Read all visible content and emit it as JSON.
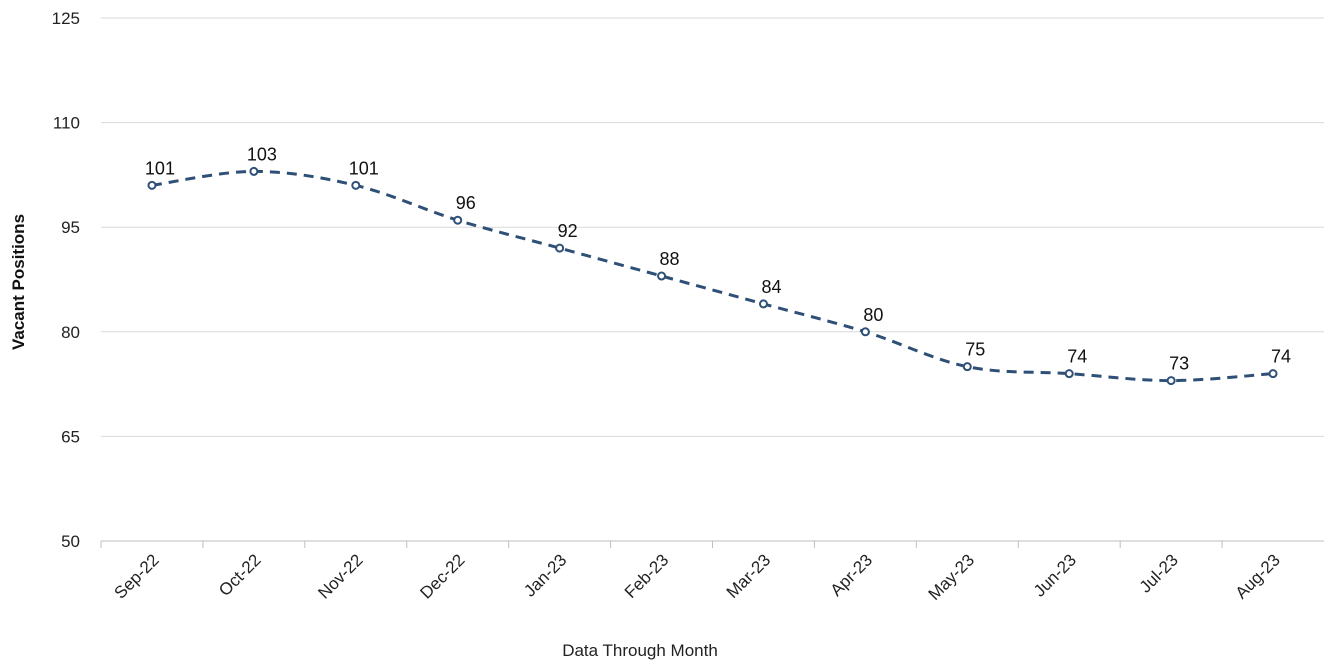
{
  "chart_data": {
    "type": "line",
    "title": "",
    "xlabel": "Data Through Month",
    "ylabel": "Vacant Positions",
    "categories": [
      "Sep-22",
      "Oct-22",
      "Nov-22",
      "Dec-22",
      "Jan-23",
      "Feb-23",
      "Mar-23",
      "Apr-23",
      "May-23",
      "Jun-23",
      "Jul-23",
      "Aug-23"
    ],
    "series": [
      {
        "values": [
          101,
          103,
          101,
          96,
          92,
          88,
          84,
          80,
          75,
          74,
          73,
          74
        ]
      }
    ],
    "ylim": [
      50,
      125
    ],
    "yticks": [
      "50",
      "65",
      "80",
      "95",
      "110",
      "125"
    ],
    "grid": true,
    "legend": "none",
    "line_style": "dashed",
    "line_color": "#2E5077",
    "marker": "circle",
    "data_labels": true
  }
}
